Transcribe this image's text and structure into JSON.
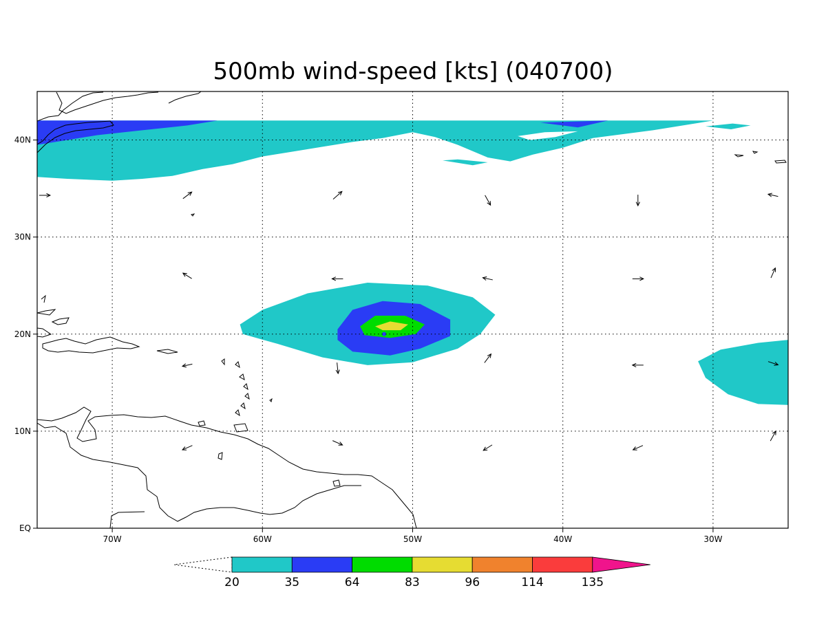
{
  "title": "500mb wind-speed [kts] (040700)",
  "map": {
    "lon_range": [
      -75,
      -25
    ],
    "lat_range": [
      0,
      45
    ],
    "lon_ticks": [
      {
        "value": -70,
        "label": "70W"
      },
      {
        "value": -60,
        "label": "60W"
      },
      {
        "value": -50,
        "label": "50W"
      },
      {
        "value": -40,
        "label": "40W"
      },
      {
        "value": -30,
        "label": "30W"
      }
    ],
    "lat_ticks": [
      {
        "value": 0,
        "label": "EQ"
      },
      {
        "value": 10,
        "label": "10N"
      },
      {
        "value": 20,
        "label": "20N"
      },
      {
        "value": 30,
        "label": "30N"
      },
      {
        "value": 40,
        "label": "40N"
      }
    ],
    "grid": "dotted"
  },
  "colorbar": {
    "levels": [
      "20",
      "35",
      "64",
      "83",
      "96",
      "114",
      "135"
    ],
    "colors": [
      "#ffffff",
      "#20c8c8",
      "#2a3cf5",
      "#00dc00",
      "#e6dc32",
      "#f0822d",
      "#fa3c3c",
      "#f0148c"
    ],
    "ends": "triangular"
  },
  "wind_vectors": [
    {
      "lon": -74.5,
      "lat": 34.3,
      "u": 1,
      "v": 0
    },
    {
      "lon": -65,
      "lat": 34.3,
      "u": 0.8,
      "v": 0.6
    },
    {
      "lon": -55,
      "lat": 34.3,
      "u": 0.8,
      "v": 0.7
    },
    {
      "lon": -45,
      "lat": 33.8,
      "u": 0.5,
      "v": -0.9
    },
    {
      "lon": -35,
      "lat": 33.8,
      "u": 0,
      "v": -1
    },
    {
      "lon": -26,
      "lat": 34.3,
      "u": -0.9,
      "v": 0.2
    },
    {
      "lon": -65,
      "lat": 26.0,
      "u": -0.8,
      "v": 0.5
    },
    {
      "lon": -55,
      "lat": 25.7,
      "u": -1,
      "v": 0
    },
    {
      "lon": -45,
      "lat": 25.7,
      "u": -0.9,
      "v": 0.2
    },
    {
      "lon": -35,
      "lat": 25.7,
      "u": 1,
      "v": 0
    },
    {
      "lon": -26,
      "lat": 26.3,
      "u": 0.4,
      "v": 0.9
    },
    {
      "lon": -65,
      "lat": 16.8,
      "u": -0.9,
      "v": -0.2
    },
    {
      "lon": -55,
      "lat": 16.5,
      "u": 0.1,
      "v": -1
    },
    {
      "lon": -45,
      "lat": 17.5,
      "u": 0.6,
      "v": 0.8
    },
    {
      "lon": -35,
      "lat": 16.8,
      "u": -1,
      "v": 0
    },
    {
      "lon": -26,
      "lat": 17.0,
      "u": 0.9,
      "v": -0.3
    },
    {
      "lon": -65,
      "lat": 8.3,
      "u": -0.9,
      "v": -0.4
    },
    {
      "lon": -55,
      "lat": 8.8,
      "u": 0.9,
      "v": -0.4
    },
    {
      "lon": -45,
      "lat": 8.3,
      "u": -0.8,
      "v": -0.5
    },
    {
      "lon": -35,
      "lat": 8.3,
      "u": -0.9,
      "v": -0.4
    },
    {
      "lon": -26,
      "lat": 9.5,
      "u": 0.5,
      "v": 0.9
    }
  ],
  "shaded_regions": [
    {
      "level": "20-35",
      "color": "#20c8c8",
      "lonlat": [
        [
          -75,
          42
        ],
        [
          -30,
          42
        ],
        [
          -34,
          41
        ],
        [
          -38,
          40.2
        ],
        [
          -40,
          39.2
        ],
        [
          -42,
          38.5
        ],
        [
          -43.5,
          37.8
        ],
        [
          -45,
          38.2
        ],
        [
          -47,
          39.5
        ],
        [
          -48.5,
          40.3
        ],
        [
          -50,
          40.8
        ],
        [
          -52,
          40.2
        ],
        [
          -54,
          39.8
        ],
        [
          -56,
          39.3
        ],
        [
          -58,
          38.8
        ],
        [
          -60,
          38.3
        ],
        [
          -62,
          37.5
        ],
        [
          -64,
          37.0
        ],
        [
          -66,
          36.3
        ],
        [
          -68,
          36.0
        ],
        [
          -70,
          35.8
        ],
        [
          -73,
          36.0
        ],
        [
          -75,
          36.2
        ]
      ]
    },
    {
      "level": "35-64",
      "color": "#2a3cf5",
      "lonlat": [
        [
          -75,
          42
        ],
        [
          -63,
          42
        ],
        [
          -65,
          41.5
        ],
        [
          -68,
          41
        ],
        [
          -71,
          40.5
        ],
        [
          -73,
          40
        ],
        [
          -75,
          39.5
        ]
      ]
    },
    {
      "level": "35-64",
      "color": "#2a3cf5",
      "lonlat": [
        [
          -41.5,
          41.8
        ],
        [
          -37,
          42
        ],
        [
          -39,
          41.3
        ]
      ]
    },
    {
      "level": "20-35",
      "color": "#20c8c8",
      "lonlat": [
        [
          -61.5,
          21
        ],
        [
          -60,
          22.5
        ],
        [
          -57,
          24.2
        ],
        [
          -53,
          25.3
        ],
        [
          -49,
          25.0
        ],
        [
          -46,
          23.8
        ],
        [
          -44.5,
          22
        ],
        [
          -45.5,
          20
        ],
        [
          -47,
          18.5
        ],
        [
          -50,
          17.1
        ],
        [
          -53,
          16.8
        ],
        [
          -56,
          17.6
        ],
        [
          -59,
          19
        ],
        [
          -61.3,
          20
        ]
      ]
    },
    {
      "level": "35-64",
      "color": "#2a3cf5",
      "lonlat": [
        [
          -55,
          20.5
        ],
        [
          -54,
          22.5
        ],
        [
          -52,
          23.4
        ],
        [
          -49.5,
          23.1
        ],
        [
          -47.5,
          21.5
        ],
        [
          -47.5,
          19.8
        ],
        [
          -49.5,
          18.5
        ],
        [
          -51.5,
          17.8
        ],
        [
          -54,
          18.2
        ],
        [
          -55,
          19.4
        ]
      ]
    },
    {
      "level": "64-83",
      "color": "#00dc00",
      "lonlat": [
        [
          -53.5,
          20.8
        ],
        [
          -52.5,
          21.9
        ],
        [
          -50.5,
          21.9
        ],
        [
          -49.2,
          21
        ],
        [
          -49.8,
          20
        ],
        [
          -51.5,
          19.6
        ],
        [
          -53.2,
          19.9
        ]
      ]
    },
    {
      "level": "83-96",
      "color": "#e6dc32",
      "lonlat": [
        [
          -52.5,
          20.8
        ],
        [
          -51.5,
          21.3
        ],
        [
          -50.3,
          21
        ],
        [
          -50.8,
          20.4
        ],
        [
          -52,
          20.4
        ]
      ]
    },
    {
      "level": "20-35",
      "color": "#20c8c8",
      "lonlat": [
        [
          -25,
          19.4
        ],
        [
          -27,
          19.1
        ],
        [
          -29.5,
          18.4
        ],
        [
          -31,
          17.2
        ],
        [
          -30.5,
          15.5
        ],
        [
          -29,
          13.8
        ],
        [
          -27,
          12.8
        ],
        [
          -25,
          12.7
        ]
      ]
    },
    {
      "level": "20-35",
      "color": "#20c8c8",
      "lonlat": [
        [
          -30.5,
          41.4
        ],
        [
          -28.7,
          41.7
        ],
        [
          -27.5,
          41.5
        ],
        [
          -28.8,
          41.1
        ]
      ]
    },
    {
      "level": "20-35",
      "color": "#20c8c8",
      "lonlat": [
        [
          -45,
          37.7
        ],
        [
          -47,
          38.0
        ],
        [
          -48,
          37.9
        ],
        [
          -46,
          37.4
        ]
      ]
    }
  ],
  "white_holes": [
    {
      "lonlat": [
        [
          -43,
          40.4
        ],
        [
          -41.2,
          40.8
        ],
        [
          -39,
          40.9
        ],
        [
          -40.5,
          40.3
        ],
        [
          -42.2,
          40.0
        ]
      ]
    }
  ]
}
